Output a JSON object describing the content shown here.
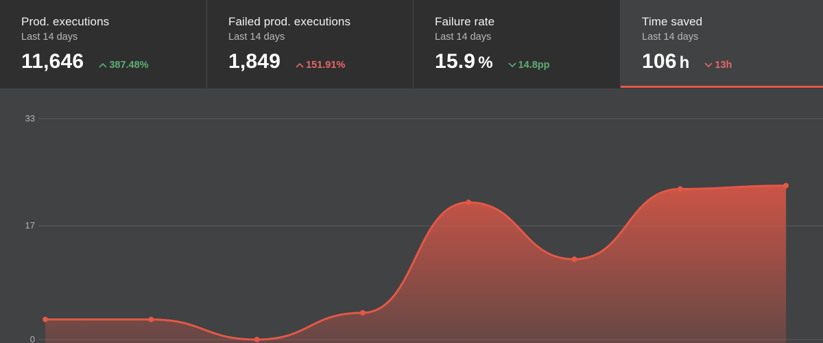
{
  "cards": [
    {
      "title": "Prod. executions",
      "subtitle": "Last 14 days",
      "value": "11,646",
      "unit": "",
      "delta": "387.48%",
      "delta_direction": "up",
      "delta_tone": "good"
    },
    {
      "title": "Failed prod. executions",
      "subtitle": "Last 14 days",
      "value": "1,849",
      "unit": "",
      "delta": "151.91%",
      "delta_direction": "up",
      "delta_tone": "bad"
    },
    {
      "title": "Failure rate",
      "subtitle": "Last 14 days",
      "value": "15.9",
      "unit": "%",
      "delta": "14.8pp",
      "delta_direction": "down",
      "delta_tone": "good"
    },
    {
      "title": "Time saved",
      "subtitle": "Last 14 days",
      "value": "106",
      "unit": "h",
      "delta": "13h",
      "delta_direction": "down",
      "delta_tone": "bad",
      "active": true
    }
  ],
  "colors": {
    "accent": "#e45847",
    "good": "#5fae72",
    "bad": "#e86767"
  },
  "chart_data": {
    "type": "area",
    "ylim": [
      0,
      33
    ],
    "yticks": [
      "33",
      "17",
      "0"
    ],
    "ytick_values": [
      33,
      17,
      0
    ],
    "grid": true,
    "x": [
      1,
      2,
      3,
      4,
      5,
      6,
      7,
      8
    ],
    "values": [
      3,
      3,
      0,
      4,
      20.5,
      12,
      22.5,
      23
    ]
  }
}
